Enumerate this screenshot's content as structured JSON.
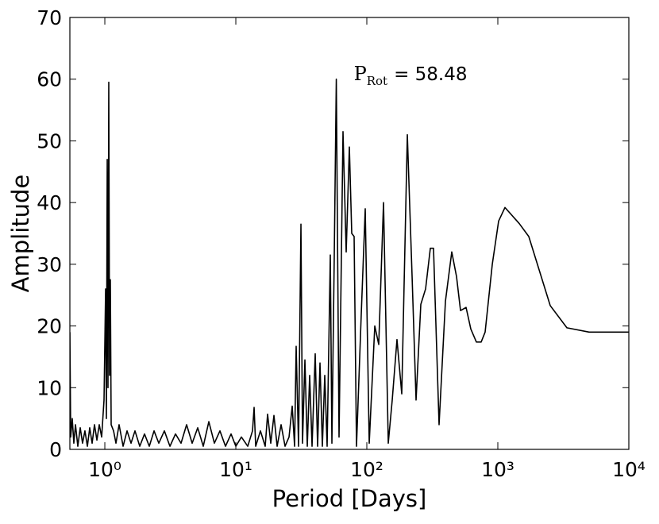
{
  "chart_data": {
    "type": "line",
    "xlabel": "Period [Days]",
    "ylabel": "Amplitude",
    "annotation": {
      "symbol": "P",
      "subscript": "Rot",
      "text": "= 58.48"
    },
    "annotation_x": 58.48,
    "color": "#000000",
    "xscale": "log",
    "grid": false,
    "xlim": [
      0.541,
      10000
    ],
    "ylim": [
      0,
      70
    ],
    "xticks": [
      {
        "value": 1,
        "label": "10⁰"
      },
      {
        "value": 10,
        "label": "10¹"
      },
      {
        "value": 100,
        "label": "10²"
      },
      {
        "value": 1000,
        "label": "10³"
      },
      {
        "value": 10000,
        "label": "10⁴"
      }
    ],
    "yticks": [
      0,
      10,
      20,
      30,
      40,
      50,
      60,
      70
    ],
    "x": [
      0.541,
      0.549,
      0.564,
      0.58,
      0.597,
      0.622,
      0.649,
      0.676,
      0.705,
      0.736,
      0.767,
      0.8,
      0.834,
      0.87,
      0.907,
      0.946,
      0.986,
      1.014,
      1.028,
      1.043,
      1.057,
      1.072,
      1.087,
      1.102,
      1.118,
      1.166,
      1.216,
      1.285,
      1.379,
      1.478,
      1.585,
      1.699,
      1.848,
      2.009,
      2.185,
      2.376,
      2.583,
      2.848,
      3.141,
      3.463,
      3.818,
      4.21,
      4.642,
      5.118,
      5.643,
      6.222,
      6.86,
      7.564,
      8.34,
      9.197,
      10,
      11.03,
      12.33,
      13.41,
      13.79,
      14.18,
      15.41,
      16.76,
      17.48,
      18.48,
      19.54,
      20.67,
      22.16,
      23.76,
      25.48,
      26.94,
      28.09,
      28.88,
      30.12,
      31.41,
      32.29,
      33.68,
      35.12,
      36.61,
      38.18,
      40.37,
      42.1,
      43.9,
      45.77,
      47.74,
      49.77,
      52.63,
      54.12,
      56.43,
      58.48,
      61.36,
      65.79,
      69.58,
      73.56,
      76.71,
      79.98,
      83.4,
      90.71,
      97.24,
      104.3,
      115,
      123.3,
      134.1,
      145.8,
      156.3,
      169.9,
      184.8,
      203.8,
      221.6,
      237.6,
      258.3,
      280.9,
      305.4,
      322.9,
      356,
      398.1,
      445,
      483.9,
      519.1,
      572.3,
      622.2,
      686,
      746,
      799.8,
      907.2,
      1014,
      1134,
      1457,
      1723,
      2512,
      3368,
      4977,
      10000
    ],
    "values": [
      19,
      2,
      5,
      1,
      4,
      0.5,
      3.5,
      1,
      3,
      0.5,
      3.5,
      1,
      4,
      1.5,
      4,
      2,
      8,
      26,
      5,
      47,
      10,
      59.5,
      12,
      27.5,
      4,
      3,
      1,
      4,
      0.5,
      3,
      1,
      3,
      0.5,
      2.5,
      0.5,
      3,
      1,
      3,
      0.5,
      2.5,
      1,
      4,
      1,
      3.5,
      0.5,
      4.5,
      1,
      3,
      0.5,
      2.5,
      0.5,
      2,
      0.5,
      3,
      6.8,
      0.5,
      3,
      0.5,
      5.7,
      1,
      5.5,
      0.5,
      4,
      0.5,
      2,
      7,
      0.5,
      16.7,
      0.5,
      36.5,
      1,
      14.5,
      0.5,
      12,
      0.5,
      15.5,
      0.5,
      14,
      0.5,
      12,
      0.5,
      31.5,
      1,
      31.5,
      60,
      2,
      51.5,
      32,
      49,
      35,
      34.5,
      0.5,
      22,
      39,
      1,
      20,
      17,
      40,
      1,
      8,
      17.8,
      9,
      51,
      28,
      8,
      23.5,
      26,
      32.6,
      32.6,
      4,
      24,
      32,
      28,
      22.5,
      23,
      19.5,
      17.4,
      17.4,
      19,
      30,
      37,
      39.2,
      36.6,
      34.5,
      23.3,
      19.7,
      19,
      19
    ]
  }
}
